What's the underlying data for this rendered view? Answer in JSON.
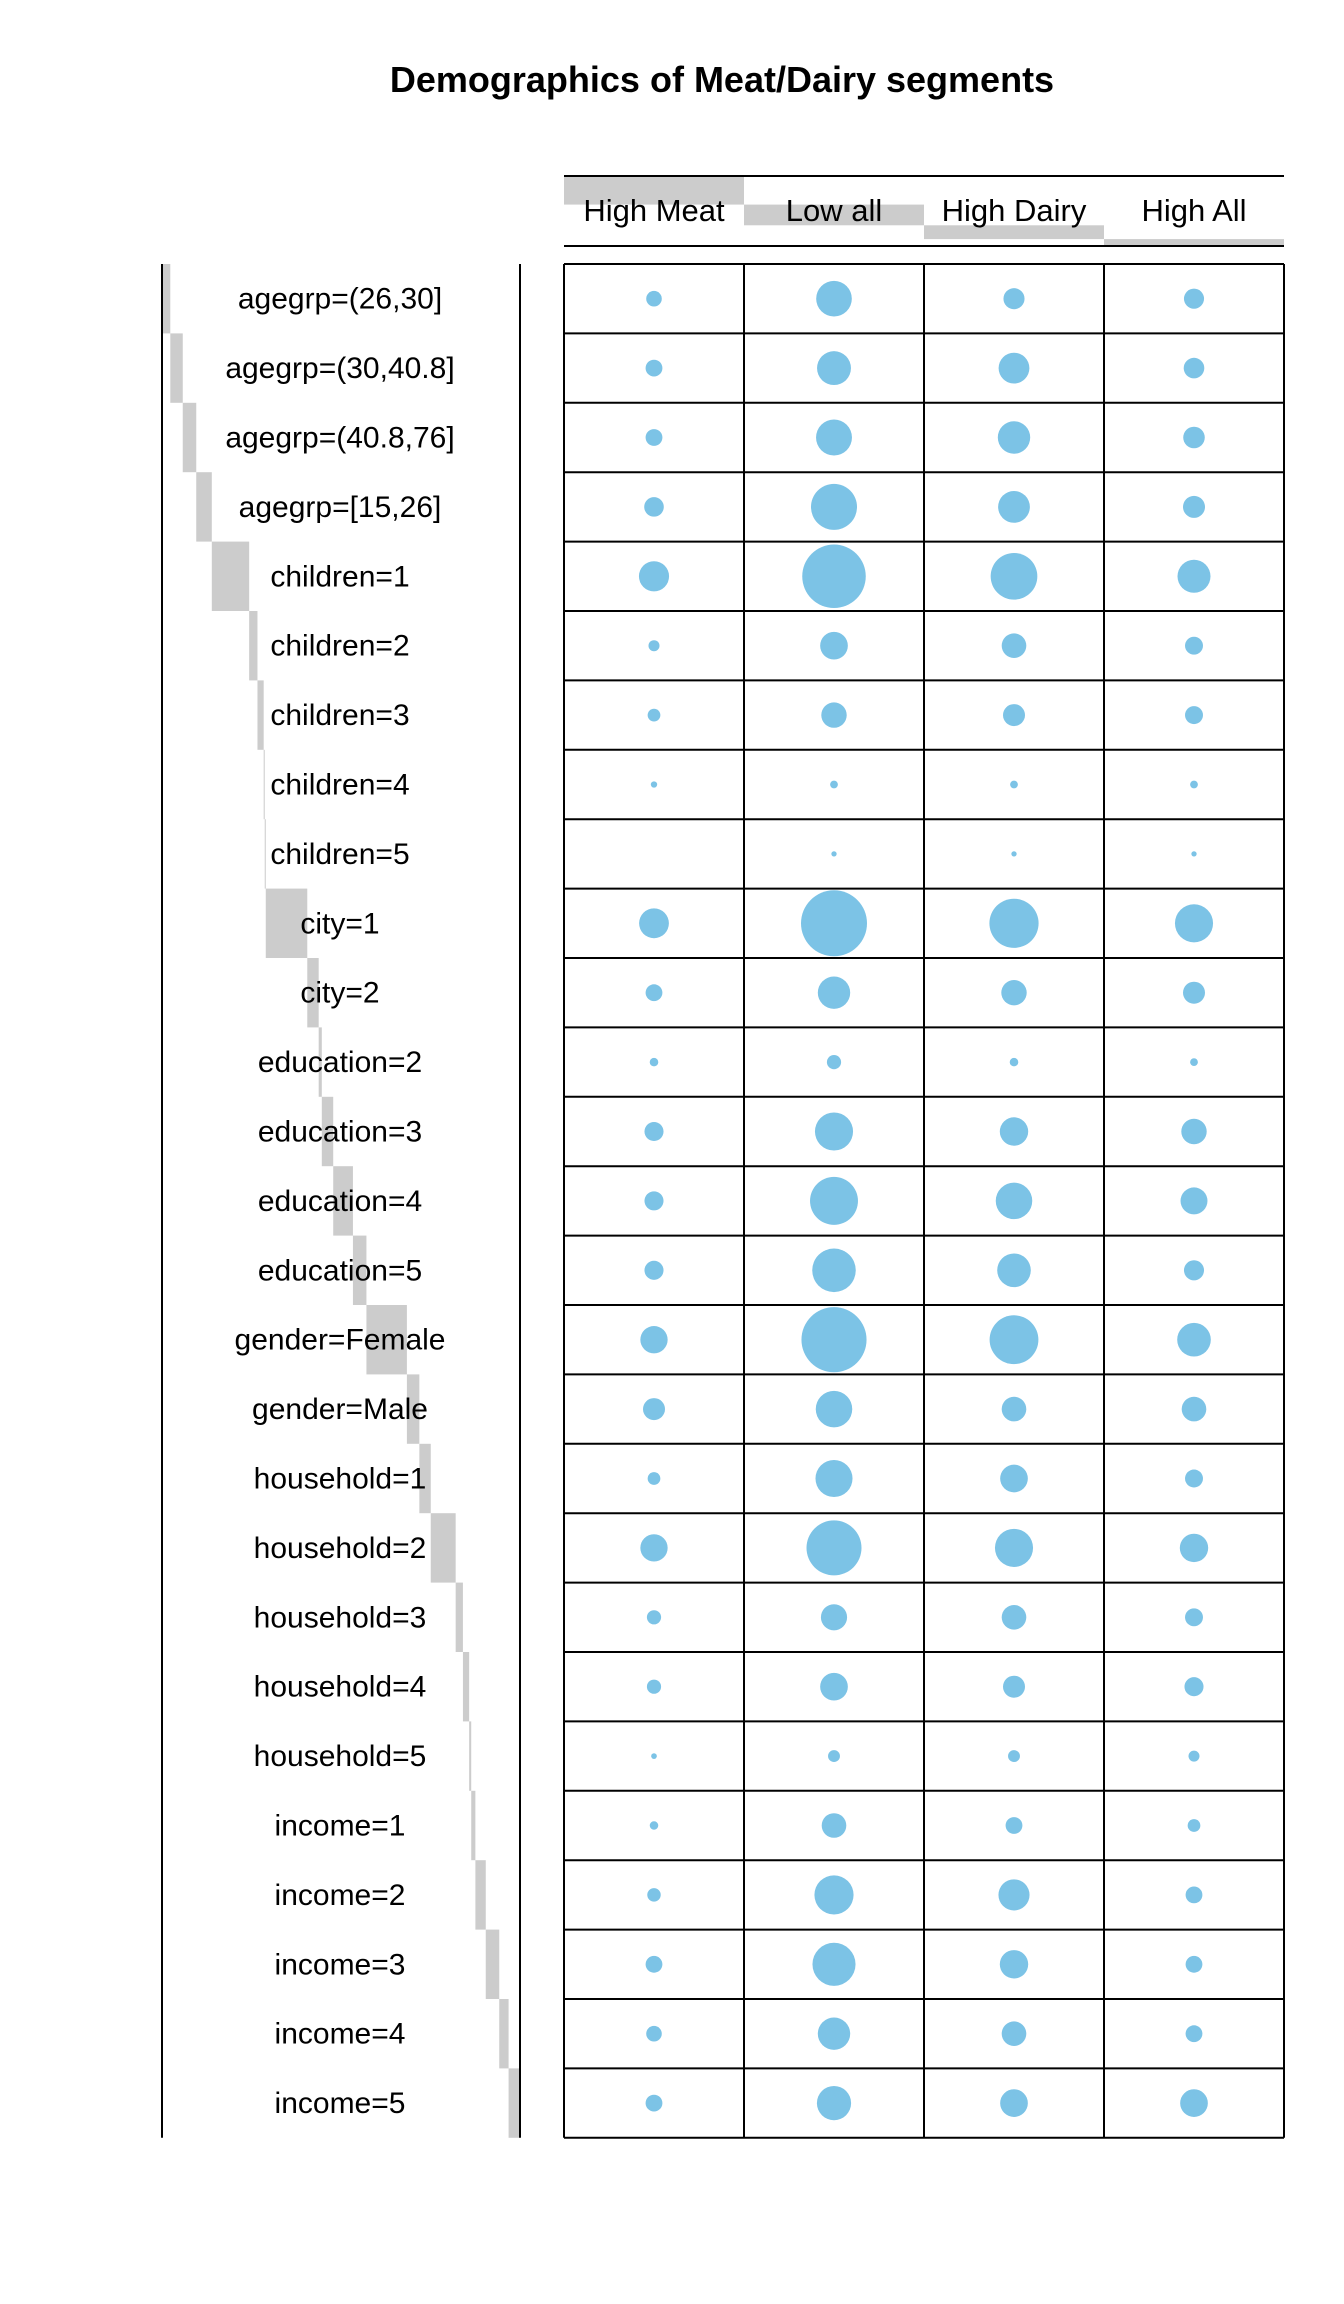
{
  "chart_data": {
    "type": "balloon",
    "title": "Demographics of Meat/Dairy segments",
    "columns": [
      "High Meat",
      "Low all",
      "High Dairy",
      "High All"
    ],
    "column_shares": [
      0.29,
      0.21,
      0.14,
      0.07
    ],
    "rows": [
      {
        "label": "agegrp=(26,30]",
        "share": 0.008,
        "values": [
          60,
          315,
          110,
          100
        ]
      },
      {
        "label": "agegrp=(30,40.8]",
        "share": 0.012,
        "values": [
          70,
          285,
          235,
          105
        ]
      },
      {
        "label": "agegrp=(40.8,76]",
        "share": 0.013,
        "values": [
          70,
          320,
          260,
          115
        ]
      },
      {
        "label": "agegrp=[15,26]",
        "share": 0.015,
        "values": [
          95,
          525,
          250,
          120
        ]
      },
      {
        "label": "children=1",
        "share": 0.036,
        "values": [
          225,
          1000,
          540,
          270
        ]
      },
      {
        "label": "children=2",
        "share": 0.008,
        "values": [
          30,
          190,
          150,
          80
        ]
      },
      {
        "label": "children=3",
        "share": 0.006,
        "values": [
          40,
          160,
          120,
          80
        ]
      },
      {
        "label": "children=4",
        "share": 0.001,
        "values": [
          10,
          15,
          15,
          15
        ]
      },
      {
        "label": "children=5",
        "share": 0.001,
        "values": [
          0,
          7,
          7,
          7
        ]
      },
      {
        "label": "city=1",
        "share": 0.04,
        "values": [
          220,
          1080,
          600,
          360
        ]
      },
      {
        "label": "city=2",
        "share": 0.011,
        "values": [
          70,
          260,
          160,
          120
        ]
      },
      {
        "label": "education=2",
        "share": 0.003,
        "values": [
          18,
          50,
          18,
          15
        ]
      },
      {
        "label": "education=3",
        "share": 0.011,
        "values": [
          90,
          360,
          200,
          160
        ]
      },
      {
        "label": "education=4",
        "share": 0.019,
        "values": [
          90,
          570,
          330,
          180
        ]
      },
      {
        "label": "education=5",
        "share": 0.013,
        "values": [
          90,
          470,
          280,
          100
        ]
      },
      {
        "label": "gender=Female",
        "share": 0.039,
        "values": [
          185,
          1050,
          590,
          280
        ]
      },
      {
        "label": "gender=Male",
        "share": 0.012,
        "values": [
          120,
          330,
          150,
          150
        ]
      },
      {
        "label": "household=1",
        "share": 0.011,
        "values": [
          40,
          340,
          190,
          80
        ]
      },
      {
        "label": "household=2",
        "share": 0.024,
        "values": [
          185,
          750,
          360,
          200
        ]
      },
      {
        "label": "household=3",
        "share": 0.007,
        "values": [
          50,
          170,
          150,
          80
        ]
      },
      {
        "label": "household=4",
        "share": 0.006,
        "values": [
          50,
          190,
          120,
          90
        ]
      },
      {
        "label": "household=5",
        "share": 0.002,
        "values": [
          8,
          35,
          35,
          30
        ]
      },
      {
        "label": "income=1",
        "share": 0.004,
        "values": [
          18,
          150,
          70,
          40
        ]
      },
      {
        "label": "income=2",
        "share": 0.01,
        "values": [
          45,
          380,
          240,
          70
        ]
      },
      {
        "label": "income=3",
        "share": 0.013,
        "values": [
          70,
          460,
          200,
          70
        ]
      },
      {
        "label": "income=4",
        "share": 0.009,
        "values": [
          60,
          260,
          150,
          70
        ]
      },
      {
        "label": "income=5",
        "share": 0.011,
        "values": [
          70,
          290,
          190,
          190
        ]
      }
    ],
    "colors": {
      "bubble": "#7cc3e6",
      "bar": "#cccccc",
      "line": "#000000"
    },
    "grid": true,
    "legend": "none"
  }
}
